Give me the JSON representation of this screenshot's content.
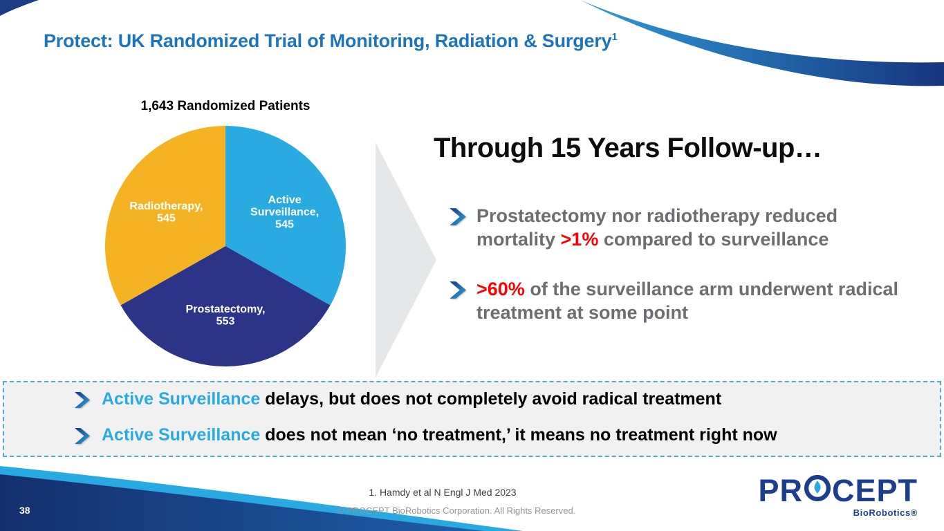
{
  "slide": {
    "title": "Protect: UK Randomized Trial of Monitoring, Radiation & Surgery",
    "title_sup": "1",
    "page_number": "38"
  },
  "chart_data": {
    "type": "pie",
    "title": "1,643 Randomized Patients",
    "total": 1643,
    "start_angle_deg": -90,
    "direction": "clockwise",
    "slices": [
      {
        "name": "Active Surveillance",
        "value": 545,
        "color": "#29ABE2",
        "label_lines": [
          "Active",
          "Surveillance,",
          "545"
        ]
      },
      {
        "name": "Prostatectomy",
        "value": 553,
        "color": "#2B3487",
        "label_lines": [
          "Prostatectomy,",
          "553"
        ]
      },
      {
        "name": "Radiotherapy",
        "value": 545,
        "color": "#F5B324",
        "label_lines": [
          "Radiotherapy,",
          "545"
        ]
      }
    ]
  },
  "main": {
    "heading": "Through 15 Years Follow-up…",
    "bullets": [
      {
        "parts": [
          {
            "text": "Prostatectomy nor radiotherapy reduced mortality "
          },
          {
            "text": ">1%"
          },
          {
            "text": " compared to surveillance"
          }
        ]
      },
      {
        "parts": [
          {
            "text": ">60%"
          },
          {
            "text": " of the surveillance arm underwent radical treatment at some point"
          }
        ]
      }
    ]
  },
  "callout_box": {
    "lines": [
      {
        "highlight": "Active Surveillance",
        "rest": " delays, but does not completely avoid radical treatment"
      },
      {
        "highlight": "Active Surveillance",
        "rest": " does not mean ‘no treatment,’ it means no treatment right now"
      }
    ]
  },
  "footer": {
    "reference": "1. Hamdy et al N Engl J Med 2023",
    "copyright": "© PROCEPT BioRobotics Corporation. All Rights Reserved.",
    "logo": {
      "text": "PROCEPT",
      "pre": "PR",
      "post": "CEPT",
      "sub": "BioRobotics®"
    }
  },
  "colors": {
    "title_blue": "#1C75BC",
    "light_blue": "#29ABE2",
    "navy": "#1B3C87",
    "yellow": "#F5B324",
    "red": "#FF0000",
    "bullet_gray": "#6D6E71",
    "box_bg": "#F1F1F2",
    "box_border": "#4FA7D9",
    "arrow_gray": "#E6E7E8"
  }
}
